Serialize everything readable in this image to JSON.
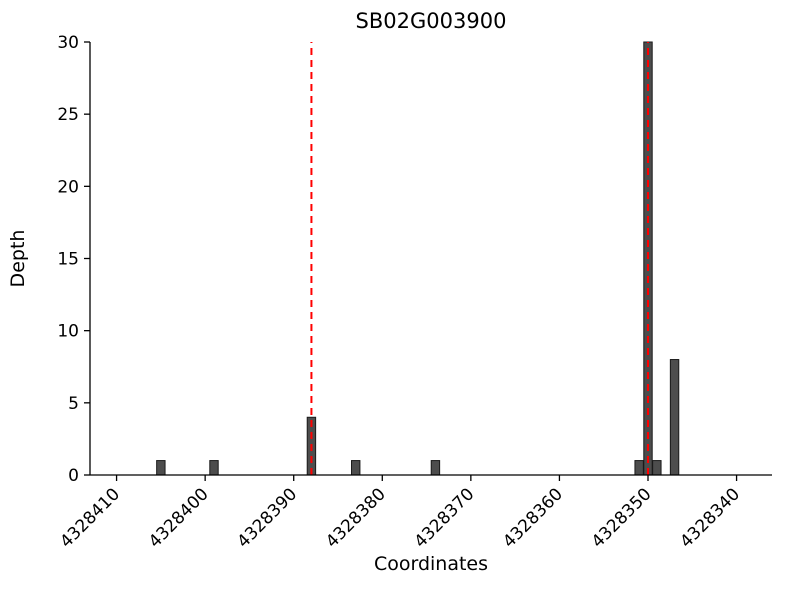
{
  "chart_data": {
    "type": "bar",
    "title": "SB02G003900",
    "xlabel": "Coordinates",
    "ylabel": "Depth",
    "x_axis_reversed": true,
    "xlim": [
      4328336,
      4328413
    ],
    "ylim": [
      0,
      30
    ],
    "xticks": [
      4328410,
      4328400,
      4328390,
      4328380,
      4328370,
      4328360,
      4328350,
      4328340
    ],
    "yticks": [
      0,
      5,
      10,
      15,
      20,
      25,
      30
    ],
    "grid": false,
    "legend": null,
    "bar_color": "#4d4d4d",
    "bar_edge_color": "#1a1a1a",
    "vline_color": "#ff0000",
    "vline_style": "dashed",
    "bars": [
      {
        "x": 4328405,
        "depth": 1
      },
      {
        "x": 4328399,
        "depth": 1
      },
      {
        "x": 4328388,
        "depth": 4
      },
      {
        "x": 4328383,
        "depth": 1
      },
      {
        "x": 4328374,
        "depth": 1
      },
      {
        "x": 4328351,
        "depth": 1
      },
      {
        "x": 4328350,
        "depth": 30
      },
      {
        "x": 4328349,
        "depth": 1
      },
      {
        "x": 4328347,
        "depth": 8
      }
    ],
    "vlines": [
      {
        "x": 4328388
      },
      {
        "x": 4328350
      }
    ]
  }
}
